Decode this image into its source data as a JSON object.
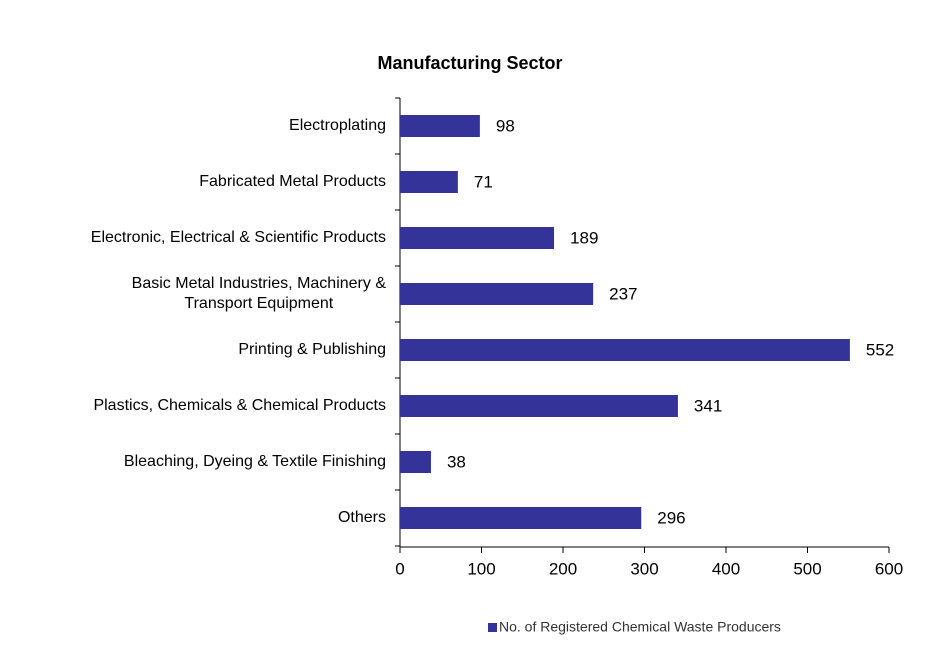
{
  "chart_data": {
    "type": "bar",
    "orientation": "horizontal",
    "title": "Manufacturing Sector",
    "categories": [
      "Electroplating",
      "Fabricated Metal Products",
      "Electronic, Electrical & Scientific Products",
      "Basic Metal Industries, Machinery &\nTransport Equipment",
      "Printing & Publishing",
      "Plastics, Chemicals & Chemical Products",
      "Bleaching, Dyeing & Textile Finishing",
      "Others"
    ],
    "series": [
      {
        "name": "No. of Registered Chemical Waste Producers",
        "color": "#333399",
        "values": [
          98,
          71,
          189,
          237,
          552,
          341,
          38,
          296
        ]
      }
    ],
    "xlim": [
      0,
      600
    ],
    "xticks": [
      0,
      100,
      200,
      300,
      400,
      500,
      600
    ],
    "grid": false,
    "legend": "bottom"
  }
}
